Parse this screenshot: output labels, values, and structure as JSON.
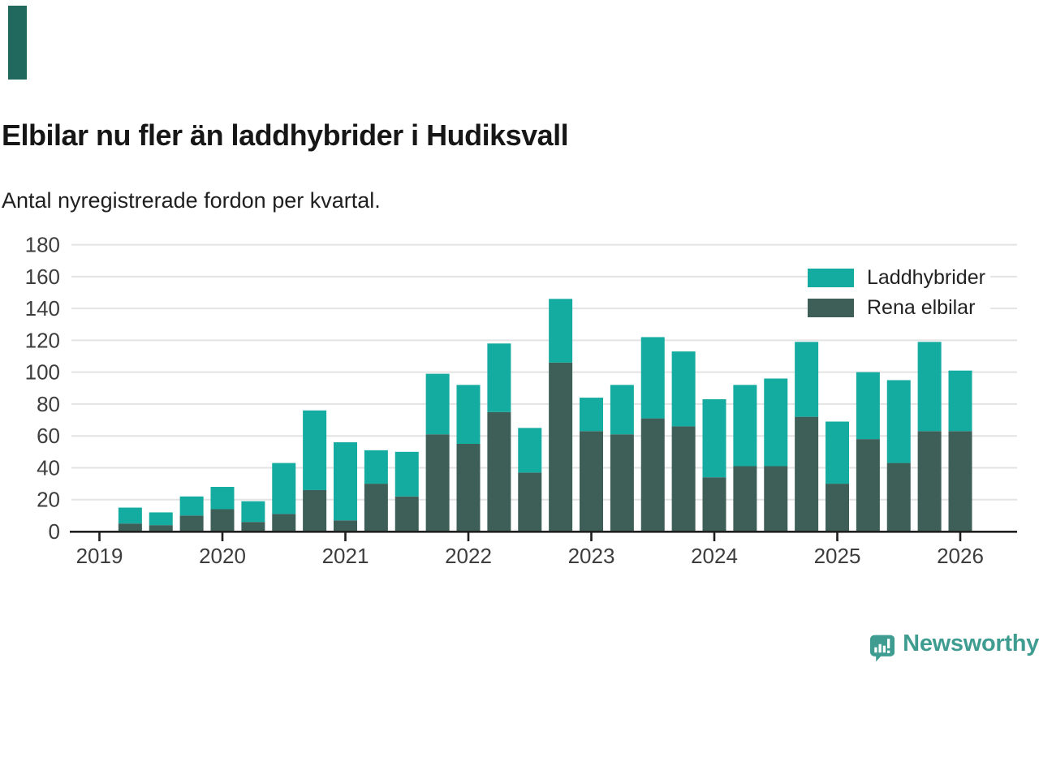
{
  "page": {
    "title": "Elbilar nu fler än laddhybrider i Hudiksvall",
    "subtitle": "Antal nyregistrerade fordon per kvartal.",
    "brand": {
      "name": "Newsworthy",
      "mark_color": "#21695e",
      "logo_color": "#3e9c90"
    }
  },
  "chart_data": {
    "type": "bar",
    "stacked": true,
    "grid": true,
    "legend_position": "top-right",
    "ylim": [
      0,
      180
    ],
    "yticklabels": [
      "0",
      "20",
      "40",
      "60",
      "80",
      "100",
      "120",
      "140",
      "160",
      "180"
    ],
    "xticklabels": [
      "2019",
      "2020",
      "2021",
      "2022",
      "2023",
      "2024",
      "2025",
      "2026"
    ],
    "categories": [
      "2019 Q2",
      "2019 Q3",
      "2019 Q4",
      "2020 Q1",
      "2020 Q2",
      "2020 Q3",
      "2020 Q4",
      "2021 Q1",
      "2021 Q2",
      "2021 Q3",
      "2021 Q4",
      "2022 Q1",
      "2022 Q2",
      "2022 Q3",
      "2022 Q4",
      "2023 Q1",
      "2023 Q2",
      "2023 Q3",
      "2023 Q4",
      "2024 Q1",
      "2024 Q2",
      "2024 Q3",
      "2024 Q4",
      "2025 Q1",
      "2025 Q2",
      "2025 Q3",
      "2025 Q4",
      "2026 Q1"
    ],
    "series": [
      {
        "name": "Laddhybrider",
        "color": "#14aba1",
        "values": [
          10,
          8,
          12,
          14,
          13,
          32,
          50,
          49,
          21,
          28,
          38,
          37,
          43,
          28,
          40,
          21,
          31,
          51,
          47,
          49,
          51,
          55,
          47,
          39,
          42,
          52,
          56,
          38
        ]
      },
      {
        "name": "Rena elbilar",
        "color": "#3d5f58",
        "values": [
          5,
          4,
          10,
          14,
          6,
          11,
          26,
          7,
          30,
          22,
          61,
          55,
          75,
          37,
          106,
          63,
          61,
          71,
          66,
          34,
          41,
          41,
          72,
          30,
          58,
          43,
          63,
          63
        ]
      }
    ],
    "totals": [
      15,
      12,
      22,
      28,
      19,
      43,
      76,
      56,
      51,
      50,
      99,
      92,
      118,
      65,
      146,
      84,
      92,
      122,
      113,
      83,
      92,
      96,
      119,
      69,
      100,
      95,
      119,
      101
    ]
  }
}
